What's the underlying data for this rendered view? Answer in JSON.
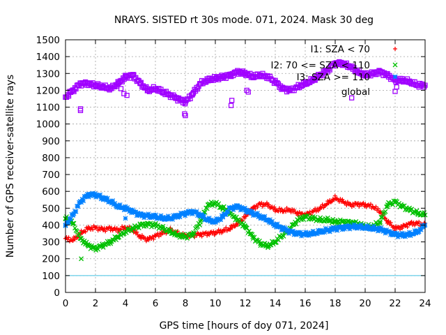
{
  "chart_data": {
    "type": "scatter",
    "title": "NRAYS. SISTED rt 30s mode. 071, 2024. Mask 30 deg",
    "xlabel": "GPS time [hours of doy 071, 2024]",
    "ylabel": "Number of GPS receiver-satellite rays",
    "xlim": [
      0,
      24
    ],
    "ylim": [
      0,
      1500
    ],
    "xticks": [
      "0",
      "2",
      "4",
      "6",
      "8",
      "10",
      "12",
      "14",
      "16",
      "18",
      "20",
      "22",
      "24"
    ],
    "yticks": [
      "0",
      "100",
      "200",
      "300",
      "400",
      "500",
      "600",
      "700",
      "800",
      "900",
      "1000",
      "1100",
      "1200",
      "1300",
      "1400",
      "1500"
    ],
    "grid": true,
    "legend_position": "top-right",
    "reference_line": {
      "y": 100,
      "color": "#40c0e0"
    },
    "series": [
      {
        "name": "I1: SZA < 70",
        "color": "#ff0000",
        "marker": "+",
        "x": [
          0,
          0.5,
          1,
          1.5,
          2,
          2.5,
          3,
          3.5,
          4,
          4.5,
          5,
          5.5,
          6,
          6.5,
          7,
          7.5,
          8,
          8.5,
          9,
          9.5,
          10,
          10.5,
          11,
          11.5,
          12,
          12.5,
          13,
          13.5,
          14,
          14.5,
          15,
          15.5,
          16,
          16.5,
          17,
          17.5,
          18,
          18.5,
          19,
          19.5,
          20,
          20.5,
          21,
          21.5,
          22,
          22.5,
          23,
          23.5,
          24
        ],
        "y": [
          320,
          310,
          350,
          380,
          385,
          375,
          380,
          370,
          385,
          370,
          330,
          315,
          335,
          355,
          370,
          350,
          335,
          340,
          345,
          350,
          355,
          365,
          380,
          410,
          450,
          500,
          525,
          520,
          490,
          485,
          490,
          470,
          460,
          480,
          500,
          530,
          560,
          540,
          520,
          525,
          520,
          510,
          480,
          420,
          380,
          390,
          410,
          410,
          400
        ]
      },
      {
        "name": "I2: 70 <= SZA < 110",
        "color": "#00c000",
        "marker": "x",
        "x": [
          0,
          0.5,
          1,
          1.5,
          2,
          2.5,
          3,
          3.5,
          4,
          4.5,
          5,
          5.5,
          6,
          6.5,
          7,
          7.5,
          8,
          8.5,
          9,
          9.5,
          10,
          10.5,
          11,
          11.5,
          12,
          12.5,
          13,
          13.5,
          14,
          14.5,
          15,
          15.5,
          16,
          16.5,
          17,
          17.5,
          18,
          18.5,
          19,
          19.5,
          20,
          20.5,
          21,
          21.5,
          22,
          22.5,
          23,
          23.5,
          24
        ],
        "y": [
          440,
          410,
          320,
          280,
          260,
          280,
          300,
          330,
          360,
          380,
          400,
          405,
          400,
          380,
          360,
          340,
          330,
          345,
          420,
          520,
          530,
          500,
          470,
          430,
          390,
          330,
          290,
          275,
          300,
          340,
          380,
          430,
          450,
          440,
          430,
          430,
          420,
          420,
          415,
          410,
          390,
          390,
          420,
          520,
          540,
          510,
          490,
          470,
          460
        ]
      },
      {
        "name": "I3: SZA >= 110",
        "color": "#0080ff",
        "marker": "*",
        "x": [
          0,
          0.5,
          1,
          1.5,
          2,
          2.5,
          3,
          3.5,
          4,
          4.5,
          5,
          5.5,
          6,
          6.5,
          7,
          7.5,
          8,
          8.5,
          9,
          9.5,
          10,
          10.5,
          11,
          11.5,
          12,
          12.5,
          13,
          13.5,
          14,
          14.5,
          15,
          15.5,
          16,
          16.5,
          17,
          17.5,
          18,
          18.5,
          19,
          19.5,
          20,
          20.5,
          21,
          21.5,
          22,
          22.5,
          23,
          23.5,
          24
        ],
        "y": [
          400,
          460,
          540,
          580,
          580,
          560,
          540,
          510,
          500,
          480,
          460,
          455,
          450,
          440,
          440,
          455,
          470,
          480,
          460,
          430,
          420,
          450,
          500,
          510,
          490,
          470,
          450,
          430,
          400,
          380,
          360,
          350,
          345,
          350,
          360,
          370,
          380,
          385,
          390,
          390,
          385,
          380,
          375,
          360,
          345,
          340,
          345,
          360,
          400
        ]
      },
      {
        "name": "global",
        "color": "#a000ff",
        "marker": "square",
        "x": [
          0,
          0.5,
          1,
          1.5,
          2,
          2.5,
          3,
          3.5,
          4,
          4.5,
          5,
          5.5,
          6,
          6.5,
          7,
          7.5,
          8,
          8.5,
          9,
          9.5,
          10,
          10.5,
          11,
          11.5,
          12,
          12.5,
          13,
          13.5,
          14,
          14.5,
          15,
          15.5,
          16,
          16.5,
          17,
          17.5,
          18,
          18.5,
          19,
          19.5,
          20,
          20.5,
          21,
          21.5,
          22,
          22.5,
          23,
          23.5,
          24
        ],
        "y": [
          1160,
          1200,
          1240,
          1240,
          1230,
          1220,
          1210,
          1240,
          1280,
          1290,
          1240,
          1200,
          1210,
          1190,
          1170,
          1150,
          1130,
          1180,
          1240,
          1260,
          1270,
          1280,
          1290,
          1310,
          1300,
          1280,
          1290,
          1280,
          1250,
          1210,
          1200,
          1220,
          1240,
          1260,
          1290,
          1320,
          1360,
          1360,
          1340,
          1310,
          1290,
          1300,
          1310,
          1290,
          1260,
          1260,
          1250,
          1230,
          1230
        ]
      }
    ],
    "outliers": [
      {
        "series": 3,
        "x": 1.0,
        "y": 1080
      },
      {
        "series": 3,
        "x": 1.0,
        "y": 1090
      },
      {
        "series": 3,
        "x": 3.9,
        "y": 1180
      },
      {
        "series": 3,
        "x": 4.1,
        "y": 1170
      },
      {
        "series": 3,
        "x": 3.7,
        "y": 1210
      },
      {
        "series": 3,
        "x": 7.95,
        "y": 1060
      },
      {
        "series": 3,
        "x": 8.0,
        "y": 1050
      },
      {
        "series": 3,
        "x": 11.05,
        "y": 1110
      },
      {
        "series": 3,
        "x": 11.1,
        "y": 1140
      },
      {
        "series": 3,
        "x": 12.1,
        "y": 1200
      },
      {
        "series": 3,
        "x": 12.2,
        "y": 1190
      },
      {
        "series": 3,
        "x": 19.1,
        "y": 1155
      },
      {
        "series": 3,
        "x": 22.1,
        "y": 1220
      },
      {
        "series": 1,
        "x": 1.05,
        "y": 200
      },
      {
        "series": 2,
        "x": 4.0,
        "y": 440
      }
    ]
  }
}
